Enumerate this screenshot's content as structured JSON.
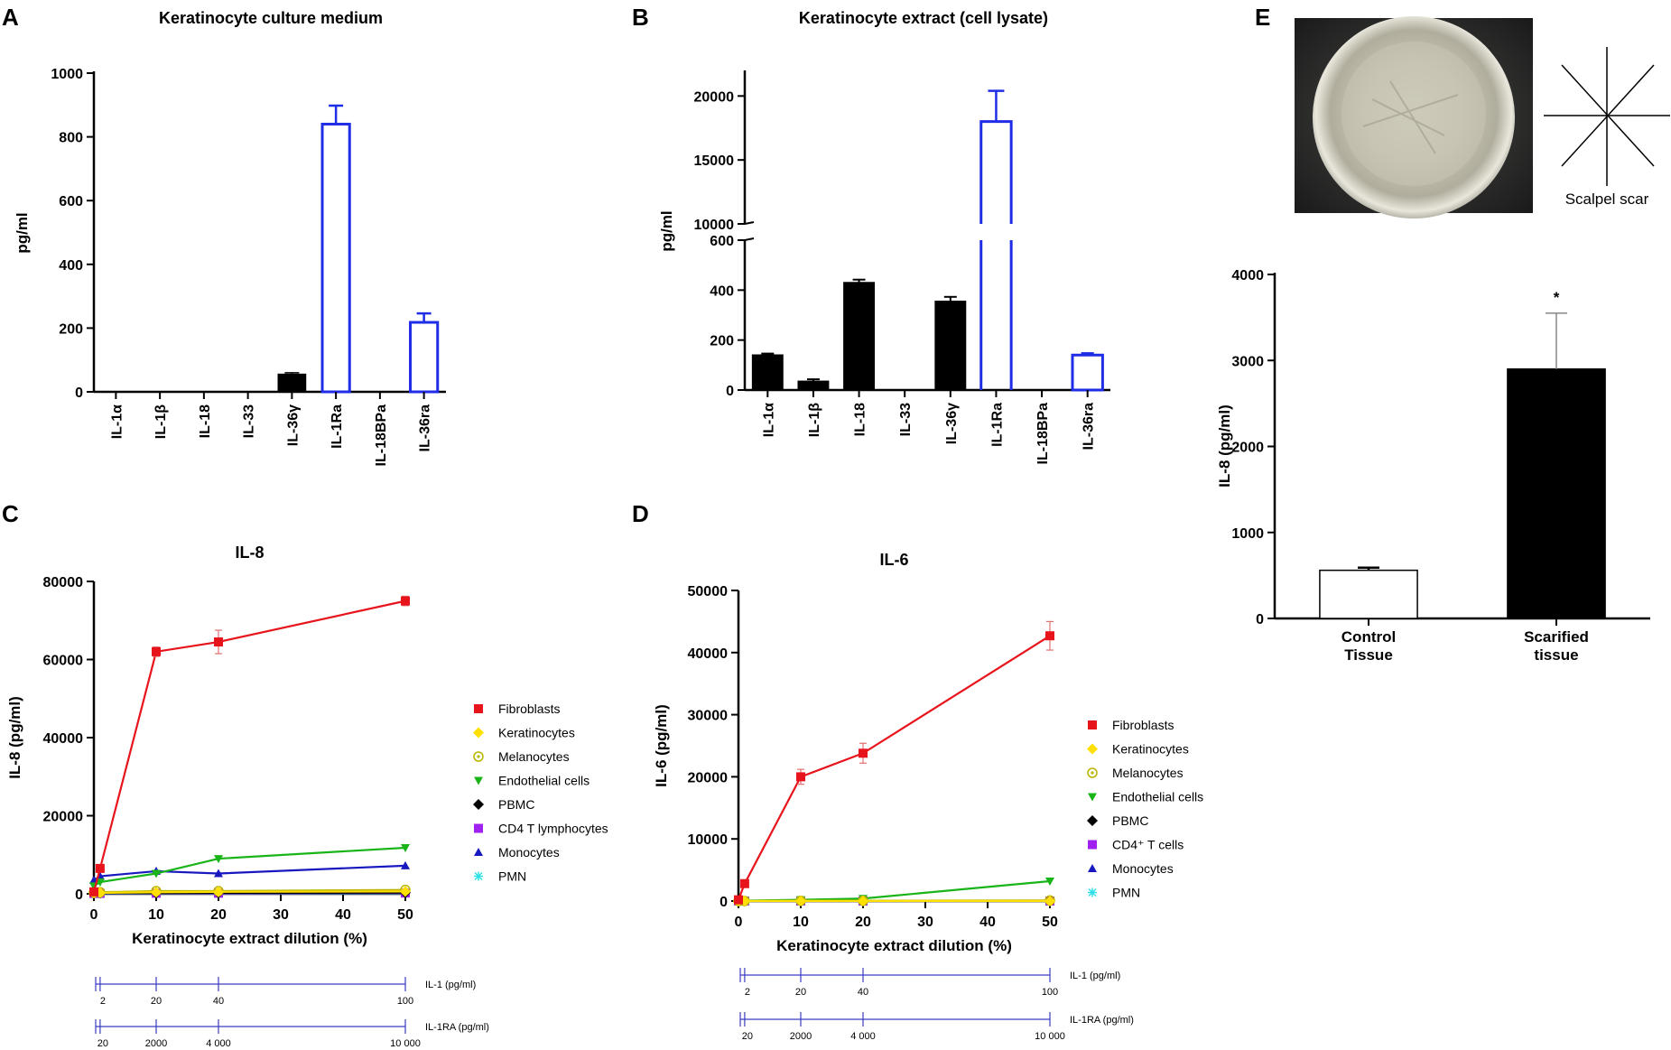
{
  "panels": {
    "A": "A",
    "B": "B",
    "C": "C",
    "D": "D",
    "E": "E"
  },
  "colors": {
    "black": "#000000",
    "blue": "#1f2ee6",
    "red": "#e8141c",
    "yellow": "#ffe000",
    "olive": "#b9b400",
    "green": "#18b418",
    "purple": "#a020f0",
    "darkblue": "#1818c0",
    "cyan": "#2fe0e8",
    "axisblue": "#3b3bc0"
  },
  "photo_caption": "Scalpel scar",
  "chart_data": [
    {
      "id": "A",
      "type": "bar",
      "title": "Keratinocyte culture medium",
      "ylabel": "pg/ml",
      "ylim": [
        0,
        1000
      ],
      "yticks": [
        0,
        200,
        400,
        600,
        800,
        1000
      ],
      "categories": [
        "IL-1α",
        "IL-1β",
        "IL-18",
        "IL-33",
        "IL-36γ",
        "IL-1Ra",
        "IL-18BPa",
        "IL-36ra"
      ],
      "values": [
        0,
        0,
        0,
        0,
        55,
        840,
        0,
        218
      ],
      "errors": [
        0,
        0,
        0,
        0,
        5,
        58,
        0,
        28
      ],
      "styles": [
        "filled",
        "filled",
        "filled",
        "filled",
        "filled",
        "open",
        "filled",
        "open"
      ]
    },
    {
      "id": "B",
      "type": "bar",
      "title": "Keratinocyte extract (cell lysate)",
      "ylabel": "pg/ml",
      "broken_axis": true,
      "ylim_lower": [
        0,
        600
      ],
      "ylim_upper": [
        10000,
        22000
      ],
      "yticks_lower": [
        0,
        200,
        400,
        600
      ],
      "yticks_upper": [
        10000,
        15000,
        20000
      ],
      "categories": [
        "IL-1α",
        "IL-1β",
        "IL-18",
        "IL-33",
        "IL-36γ",
        "IL-1Ra",
        "IL-18BPa",
        "IL-36ra"
      ],
      "values": [
        140,
        35,
        430,
        0,
        355,
        18000,
        0,
        140
      ],
      "errors": [
        6,
        8,
        12,
        0,
        18,
        2400,
        0,
        8
      ],
      "styles": [
        "filled",
        "filled",
        "filled",
        "filled",
        "filled",
        "open",
        "filled",
        "open"
      ]
    },
    {
      "id": "C",
      "type": "line",
      "title": "IL-8",
      "xlabel": "Keratinocyte extract dilution (%)",
      "ylabel": "IL-8  (pg/ml)",
      "xlim": [
        0,
        50
      ],
      "ylim": [
        0,
        80000
      ],
      "xticks": [
        0,
        10,
        20,
        30,
        40,
        50
      ],
      "yticks": [
        0,
        20000,
        40000,
        60000,
        80000
      ],
      "x": [
        0,
        1,
        10,
        20,
        50
      ],
      "series": [
        {
          "name": "Fibroblasts",
          "color": "#e8141c",
          "marker": "square",
          "values": [
            500,
            6500,
            62000,
            64500,
            75000
          ],
          "errors": [
            0,
            600,
            1200,
            3000,
            1200
          ]
        },
        {
          "name": "Keratinocytes",
          "color": "#ffe000",
          "marker": "diamond",
          "values": [
            200,
            250,
            400,
            500,
            600
          ],
          "errors": [
            0,
            0,
            0,
            0,
            0
          ]
        },
        {
          "name": "Melanocytes",
          "color": "#b9b400",
          "marker": "circledot",
          "values": [
            300,
            400,
            700,
            700,
            1000
          ],
          "errors": [
            0,
            0,
            0,
            0,
            0
          ]
        },
        {
          "name": "Endothelial cells",
          "color": "#18b418",
          "marker": "tridown",
          "values": [
            2000,
            3000,
            5200,
            9000,
            11800
          ],
          "errors": [
            0,
            0,
            0,
            0,
            0
          ]
        },
        {
          "name": "PBMC",
          "color": "#000000",
          "marker": "diamond",
          "values": [
            100,
            150,
            200,
            250,
            300
          ],
          "errors": [
            0,
            0,
            0,
            0,
            0
          ]
        },
        {
          "name": "CD4 T lymphocytes",
          "color": "#a020f0",
          "marker": "square",
          "values": [
            80,
            100,
            150,
            150,
            200
          ],
          "errors": [
            0,
            0,
            0,
            0,
            0
          ]
        },
        {
          "name": "Monocytes",
          "color": "#1818c0",
          "marker": "triup",
          "values": [
            3500,
            4500,
            5800,
            5200,
            7200
          ],
          "errors": [
            0,
            0,
            0,
            0,
            0
          ]
        },
        {
          "name": "PMN",
          "color": "#2fe0e8",
          "marker": "star",
          "values": [
            50,
            60,
            80,
            90,
            100
          ],
          "errors": [
            0,
            0,
            0,
            0,
            0
          ]
        }
      ],
      "scales": [
        {
          "label": "IL-1 (pg/ml)",
          "ticks": [
            "2",
            "20",
            "40",
            "100"
          ]
        },
        {
          "label": "IL-1RA (pg/ml)",
          "ticks": [
            "20",
            "2000",
            "4 000",
            "10 000"
          ]
        }
      ]
    },
    {
      "id": "D",
      "type": "line",
      "title": "IL-6",
      "xlabel": "Keratinocyte extract dilution (%)",
      "ylabel": "IL-6 (pg/ml)",
      "xlim": [
        0,
        50
      ],
      "ylim": [
        0,
        50000
      ],
      "xticks": [
        0,
        10,
        20,
        30,
        40,
        50
      ],
      "yticks": [
        0,
        10000,
        20000,
        30000,
        40000,
        50000
      ],
      "x": [
        0,
        1,
        10,
        20,
        50
      ],
      "series": [
        {
          "name": "Fibroblasts",
          "color": "#e8141c",
          "marker": "square",
          "values": [
            200,
            2800,
            20000,
            23800,
            42700
          ],
          "errors": [
            0,
            300,
            1200,
            1600,
            2300
          ]
        },
        {
          "name": "Keratinocytes",
          "color": "#ffe000",
          "marker": "diamond",
          "values": [
            0,
            0,
            0,
            0,
            0
          ],
          "errors": [
            0,
            0,
            0,
            0,
            0
          ]
        },
        {
          "name": "Melanocytes",
          "color": "#b9b400",
          "marker": "circledot",
          "values": [
            0,
            0,
            50,
            50,
            100
          ],
          "errors": [
            0,
            0,
            0,
            0,
            0
          ]
        },
        {
          "name": "Endothelial cells",
          "color": "#18b418",
          "marker": "tridown",
          "values": [
            0,
            50,
            200,
            400,
            3200
          ],
          "errors": [
            0,
            0,
            0,
            0,
            0
          ]
        },
        {
          "name": "PBMC",
          "color": "#000000",
          "marker": "diamond",
          "values": [
            0,
            0,
            0,
            0,
            0
          ],
          "errors": [
            0,
            0,
            0,
            0,
            0
          ]
        },
        {
          "name": "CD4⁺ T cells",
          "color": "#a020f0",
          "marker": "square",
          "values": [
            0,
            0,
            0,
            0,
            0
          ],
          "errors": [
            0,
            0,
            0,
            0,
            0
          ]
        },
        {
          "name": "Monocytes",
          "color": "#1818c0",
          "marker": "triup",
          "values": [
            0,
            0,
            0,
            0,
            0
          ],
          "errors": [
            0,
            0,
            0,
            0,
            0
          ]
        },
        {
          "name": "PMN",
          "color": "#2fe0e8",
          "marker": "star",
          "values": [
            0,
            0,
            0,
            0,
            0
          ],
          "errors": [
            0,
            0,
            0,
            0,
            0
          ]
        }
      ],
      "scales": [
        {
          "label": "IL-1 (pg/ml)",
          "ticks": [
            "2",
            "20",
            "40",
            "100"
          ]
        },
        {
          "label": "IL-1RA (pg/ml)",
          "ticks": [
            "20",
            "2000",
            "4 000",
            "10 000"
          ]
        }
      ]
    },
    {
      "id": "E",
      "type": "bar",
      "title": "",
      "ylabel": "IL-8 (pg/ml)",
      "ylim": [
        0,
        4000
      ],
      "yticks": [
        0,
        1000,
        2000,
        3000,
        4000
      ],
      "categories": [
        "Control\nTissue",
        "Scarified\ntissue"
      ],
      "values": [
        560,
        2900
      ],
      "errors": [
        30,
        650
      ],
      "styles": [
        "open",
        "filled"
      ],
      "annotation": "*"
    }
  ]
}
